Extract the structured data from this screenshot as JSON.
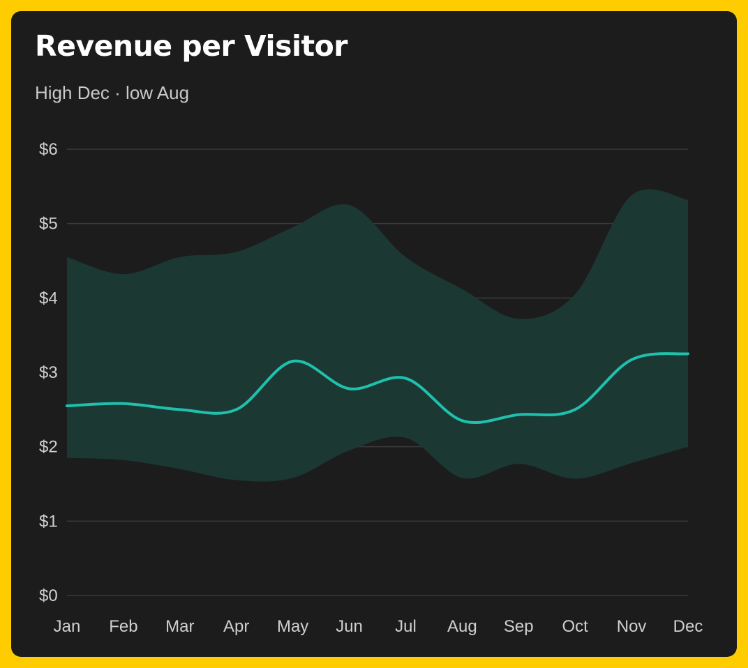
{
  "colors": {
    "page_background": "#ffcc00",
    "card_background": "#1c1c1c",
    "line": "#1fc0ad",
    "band": "#1b3833",
    "grid": "#3a3a3a",
    "text": "#ffffff",
    "muted_text": "#c9c9c9"
  },
  "chart_data": {
    "type": "area",
    "title": "Revenue per Visitor",
    "subtitle": "High Dec · low Aug",
    "xlabel": "",
    "ylabel": "",
    "categories": [
      "Jan",
      "Feb",
      "Mar",
      "Apr",
      "May",
      "Jun",
      "Jul",
      "Aug",
      "Sep",
      "Oct",
      "Nov",
      "Dec"
    ],
    "y_ticks": [
      "$0",
      "$1",
      "$2",
      "$3",
      "$4",
      "$5",
      "$6"
    ],
    "ylim": [
      0,
      6
    ],
    "grid": true,
    "legend": "none",
    "series": [
      {
        "role": "line",
        "values": [
          2.55,
          2.58,
          2.5,
          2.5,
          3.15,
          2.78,
          2.92,
          2.35,
          2.43,
          2.5,
          3.17,
          3.25
        ]
      },
      {
        "role": "band-upper",
        "values": [
          4.55,
          4.32,
          4.55,
          4.62,
          4.95,
          5.25,
          4.55,
          4.12,
          3.72,
          4.05,
          5.38,
          5.32
        ]
      },
      {
        "role": "band-lower",
        "values": [
          1.85,
          1.82,
          1.7,
          1.55,
          1.58,
          1.95,
          2.12,
          1.58,
          1.77,
          1.57,
          1.78,
          2.0
        ]
      }
    ]
  }
}
